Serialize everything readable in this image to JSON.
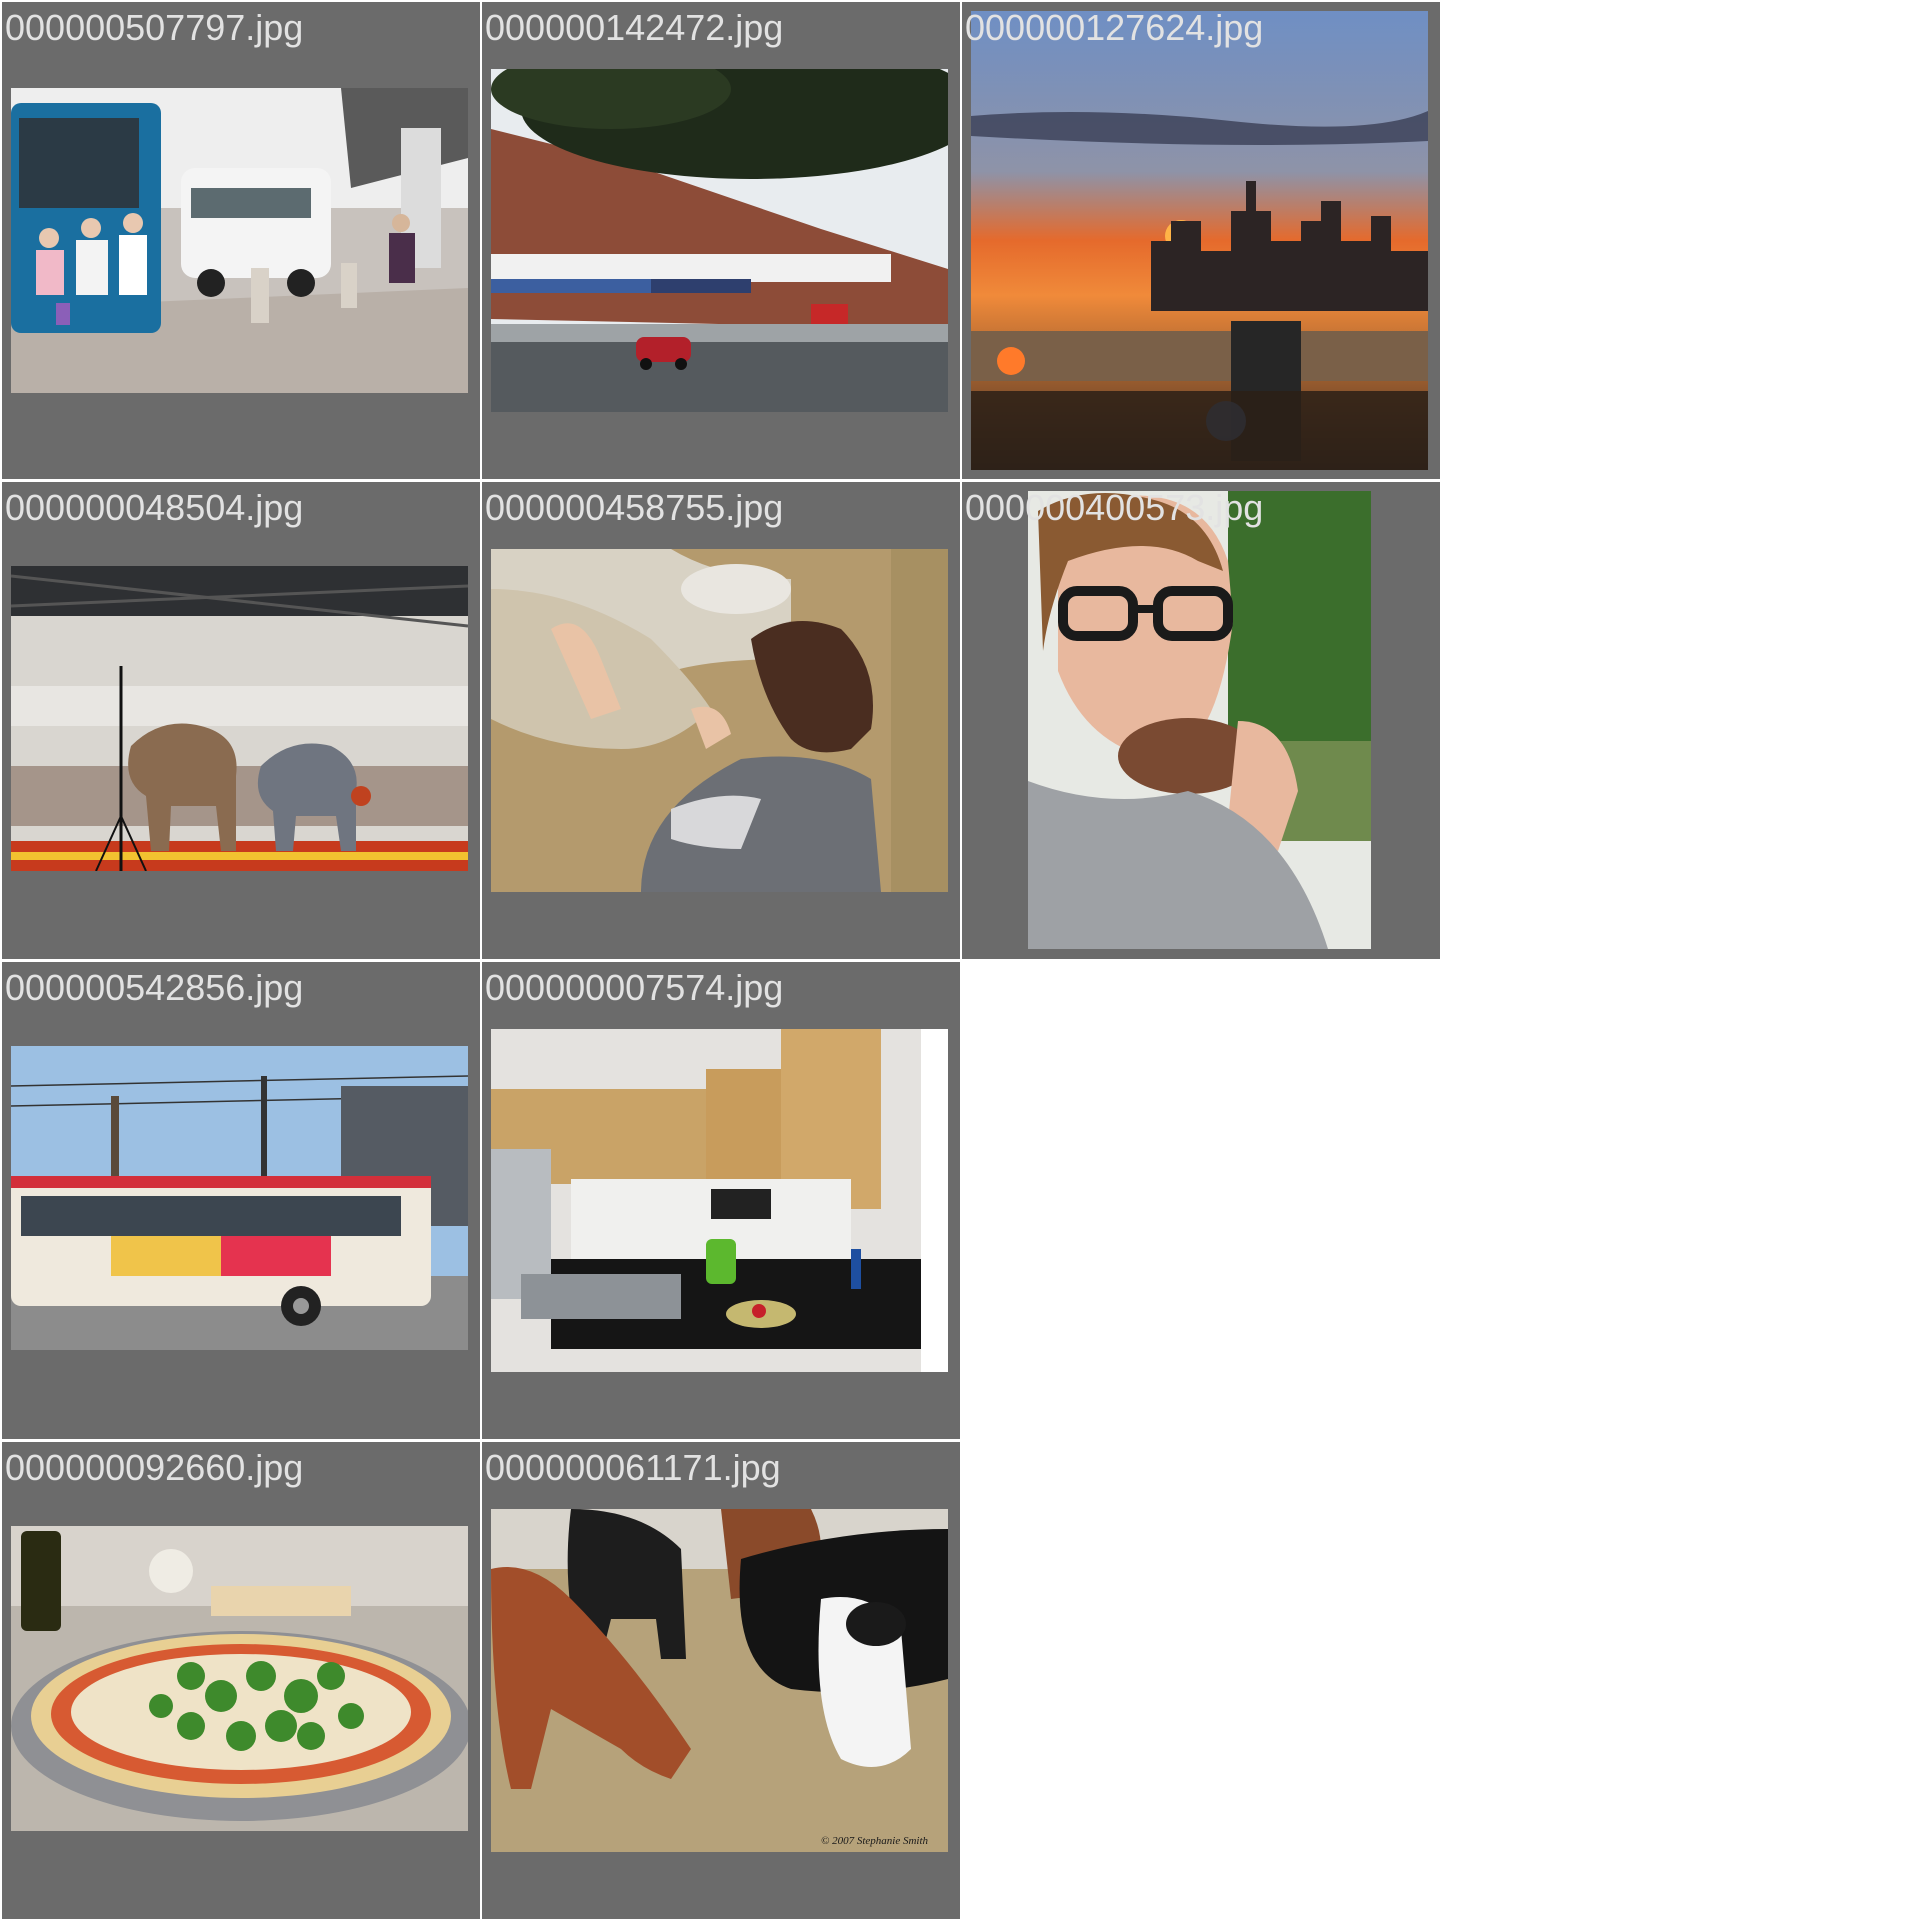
{
  "gallery": {
    "colors": {
      "tile_background": "#6b6b6b",
      "label_text": "#e2e2e2",
      "page_background": "#ffffff"
    },
    "tiles": [
      {
        "filename": "000000507797.jpg",
        "image": "bus-station-seniors-photo"
      },
      {
        "filename": "000000142472.jpg",
        "image": "street-shops-photo"
      },
      {
        "filename": "000000127624.jpg",
        "image": "city-sunset-photo"
      },
      {
        "filename": "000000048504.jpg",
        "image": "circus-elephants-photo"
      },
      {
        "filename": "000000458755.jpg",
        "image": "girl-petting-sheep-photo"
      },
      {
        "filename": "000000400573.jpg",
        "image": "man-eating-donut-photo"
      },
      {
        "filename": "000000542856.jpg",
        "image": "city-bus-photo"
      },
      {
        "filename": "000000007574.jpg",
        "image": "kitchen-photo"
      },
      {
        "filename": "000000092660.jpg",
        "image": "broccoli-pizza-photo"
      },
      {
        "filename": "000000061171.jpg",
        "image": "cattle-eating-hay-photo",
        "credit": "© 2007 Stephanie Smith"
      }
    ]
  }
}
